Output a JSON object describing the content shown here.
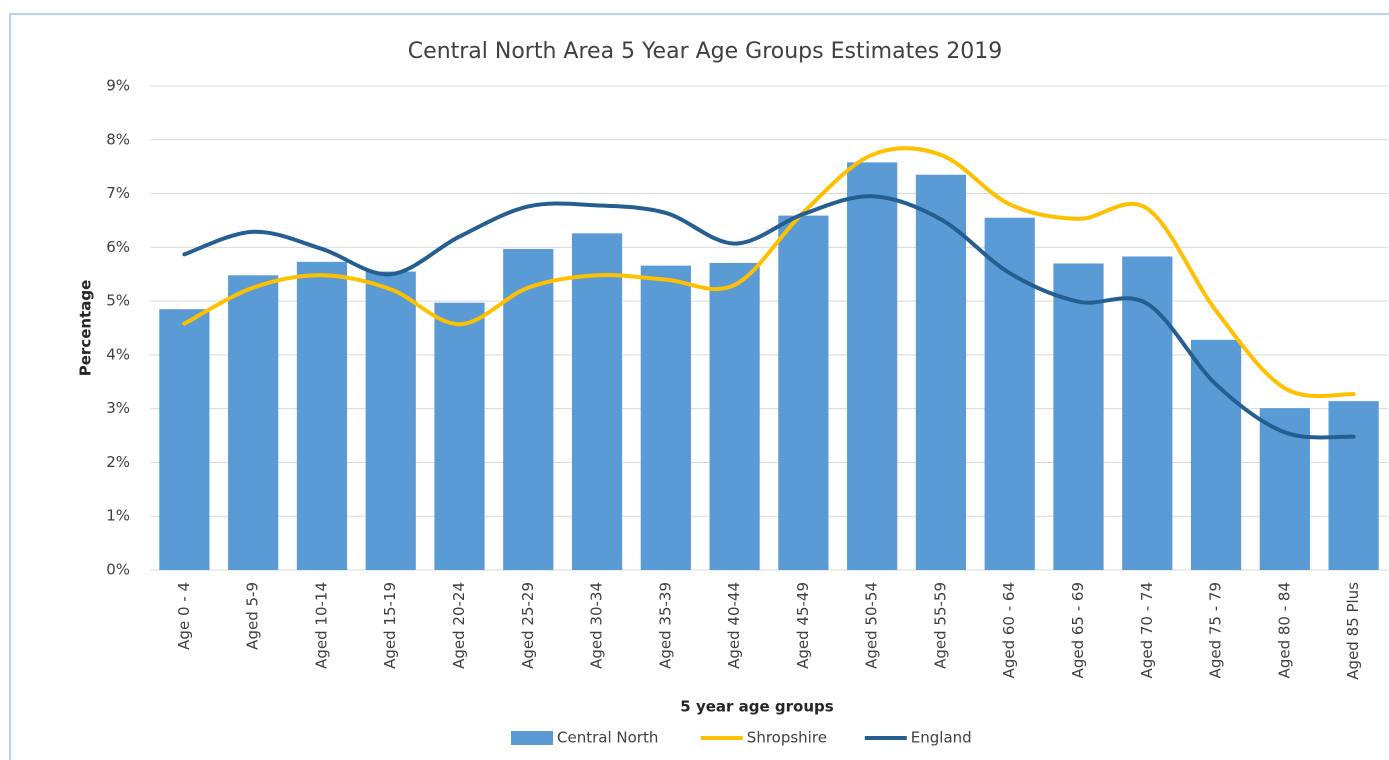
{
  "chart_data": {
    "type": "bar",
    "title": "Central North Area 5 Year Age Groups Estimates 2019",
    "x_label": "5 year age groups",
    "y_label": "Percentage",
    "categories": [
      "Age 0 - 4",
      "Aged 5-9",
      "Aged 10-14",
      "Aged 15-19",
      "Aged 20-24",
      "Aged 25-29",
      "Aged 30-34",
      "Aged 35-39",
      "Aged 40-44",
      "Aged 45-49",
      "Aged 50-54",
      "Aged 55-59",
      "Aged 60 - 64",
      "Aged 65 - 69",
      "Aged 70 - 74",
      "Aged 75 - 79",
      "Aged 80 - 84",
      "Aged 85 Plus"
    ],
    "series": [
      {
        "name": "Central North",
        "type": "bar",
        "color": "#5b9bd5",
        "values": [
          4.85,
          5.48,
          5.73,
          5.55,
          4.97,
          5.97,
          6.26,
          5.66,
          5.71,
          6.59,
          7.58,
          7.35,
          6.55,
          5.7,
          5.83,
          4.28,
          3.01,
          3.14
        ]
      },
      {
        "name": "Shropshire",
        "type": "line",
        "color": "#ffc000",
        "values": [
          4.58,
          5.25,
          5.48,
          5.22,
          4.57,
          5.25,
          5.48,
          5.4,
          5.3,
          6.65,
          7.72,
          7.72,
          6.8,
          6.53,
          6.72,
          4.82,
          3.38,
          3.27
        ]
      },
      {
        "name": "England",
        "type": "line",
        "color": "#255e91",
        "values": [
          5.87,
          6.29,
          5.97,
          5.5,
          6.2,
          6.76,
          6.78,
          6.64,
          6.07,
          6.62,
          6.95,
          6.52,
          5.52,
          4.99,
          4.95,
          3.45,
          2.56,
          2.48
        ]
      }
    ],
    "ylim": [
      0,
      9
    ],
    "yticks": [
      {
        "value": 0,
        "label": "0%"
      },
      {
        "value": 1,
        "label": "1%"
      },
      {
        "value": 2,
        "label": "2%"
      },
      {
        "value": 3,
        "label": "3%"
      },
      {
        "value": 4,
        "label": "4%"
      },
      {
        "value": 5,
        "label": "5%"
      },
      {
        "value": 6,
        "label": "6%"
      },
      {
        "value": 7,
        "label": "7%"
      },
      {
        "value": 8,
        "label": "8%"
      },
      {
        "value": 9,
        "label": "9%"
      }
    ],
    "grid": true,
    "legend": "bottom"
  }
}
